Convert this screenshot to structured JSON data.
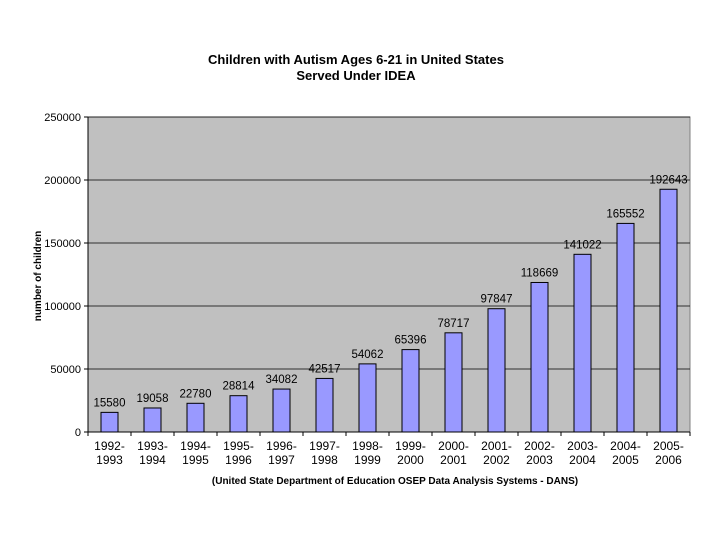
{
  "chart_data": {
    "type": "bar",
    "title": [
      "Children with Autism Ages 6-21 in United States",
      "Served Under IDEA"
    ],
    "xlabel": "",
    "ylabel": "number of children",
    "source_note": "(United State Department of Education OSEP Data Analysis Systems - DANS)",
    "categories": [
      [
        "1992-",
        "1993"
      ],
      [
        "1993-",
        "1994"
      ],
      [
        "1994-",
        "1995"
      ],
      [
        "1995-",
        "1996"
      ],
      [
        "1996-",
        "1997"
      ],
      [
        "1997-",
        "1998"
      ],
      [
        "1998-",
        "1999"
      ],
      [
        "1999-",
        "2000"
      ],
      [
        "2000-",
        "2001"
      ],
      [
        "2001-",
        "2002"
      ],
      [
        "2002-",
        "2003"
      ],
      [
        "2003-",
        "2004"
      ],
      [
        "2004-",
        "2005"
      ],
      [
        "2005-",
        "2006"
      ]
    ],
    "values": [
      15580,
      19058,
      22780,
      28814,
      34082,
      42517,
      54062,
      65396,
      78717,
      97847,
      118669,
      141022,
      165552,
      192643
    ],
    "ylim": [
      0,
      250000
    ],
    "yticks": [
      0,
      50000,
      100000,
      150000,
      200000,
      250000
    ],
    "grid": true,
    "legend": "none",
    "colors": {
      "bar_fill": "#9999ff",
      "bar_stroke": "#000000",
      "plot_background": "#c0c0c0",
      "gridline": "#000000"
    }
  }
}
